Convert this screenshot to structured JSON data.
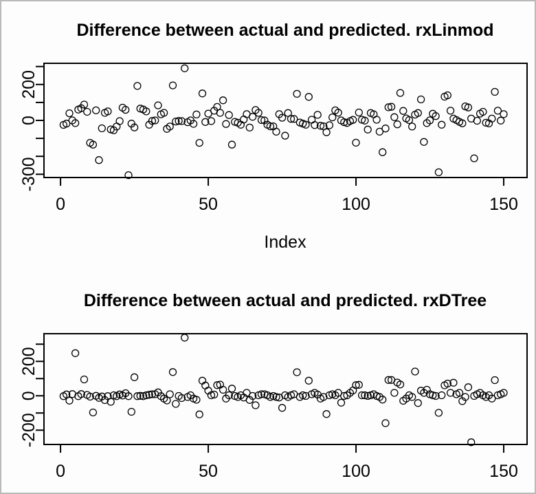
{
  "window": {
    "background": "#fdfdfd",
    "frame_color": "#b9b9b9",
    "ink_color": "#000000"
  },
  "chart_data": [
    {
      "type": "scatter",
      "title": "Difference between actual and predicted. rxLinmod",
      "xlabel": "Index",
      "ylabel": "",
      "marker": "open-circle",
      "marker_color": "#000000",
      "grid": false,
      "legend": "none",
      "xlim": [
        -5.6,
        157.9
      ],
      "ylim": [
        -318,
        318
      ],
      "x_ticks": [
        {
          "value": 0,
          "label": "0"
        },
        {
          "value": 50,
          "label": "50"
        },
        {
          "value": 100,
          "label": "100"
        },
        {
          "value": 150,
          "label": "150"
        }
      ],
      "y_ticks": [
        {
          "value": 300,
          "label": ""
        },
        {
          "value": 200,
          "label": "200"
        },
        {
          "value": 100,
          "label": ""
        },
        {
          "value": 0,
          "label": "0"
        },
        {
          "value": -100,
          "label": ""
        },
        {
          "value": -200,
          "label": ""
        },
        {
          "value": -300,
          "label": "-300"
        }
      ],
      "points": [
        [
          1,
          -25
        ],
        [
          2,
          -18
        ],
        [
          3,
          40
        ],
        [
          4,
          0
        ],
        [
          5,
          -15
        ],
        [
          6,
          60
        ],
        [
          7,
          68
        ],
        [
          8,
          88
        ],
        [
          9,
          48
        ],
        [
          10,
          -125
        ],
        [
          11,
          -135
        ],
        [
          12,
          56
        ],
        [
          13,
          -221
        ],
        [
          14,
          -44
        ],
        [
          15,
          42
        ],
        [
          16,
          50
        ],
        [
          17,
          -50
        ],
        [
          18,
          -55
        ],
        [
          19,
          -34
        ],
        [
          20,
          -4
        ],
        [
          21,
          71
        ],
        [
          22,
          59
        ],
        [
          23,
          -305
        ],
        [
          24,
          -18
        ],
        [
          25,
          -39
        ],
        [
          26,
          192
        ],
        [
          27,
          66
        ],
        [
          28,
          61
        ],
        [
          29,
          50
        ],
        [
          30,
          -24
        ],
        [
          31,
          -3
        ],
        [
          32,
          0
        ],
        [
          33,
          84
        ],
        [
          34,
          34
        ],
        [
          35,
          42
        ],
        [
          36,
          -47
        ],
        [
          37,
          -34
        ],
        [
          38,
          195
        ],
        [
          39,
          -6
        ],
        [
          40,
          -3
        ],
        [
          41,
          -4
        ],
        [
          42,
          290
        ],
        [
          43,
          -10
        ],
        [
          44,
          0
        ],
        [
          45,
          -19
        ],
        [
          46,
          33
        ],
        [
          47,
          -125
        ],
        [
          48,
          150
        ],
        [
          49,
          -9
        ],
        [
          50,
          38
        ],
        [
          51,
          -4
        ],
        [
          52,
          54
        ],
        [
          53,
          75
        ],
        [
          54,
          42
        ],
        [
          55,
          112
        ],
        [
          56,
          -20
        ],
        [
          57,
          30
        ],
        [
          58,
          -135
        ],
        [
          59,
          -8
        ],
        [
          60,
          -13
        ],
        [
          61,
          -24
        ],
        [
          62,
          5
        ],
        [
          63,
          35
        ],
        [
          64,
          -40
        ],
        [
          65,
          20
        ],
        [
          66,
          58
        ],
        [
          67,
          42
        ],
        [
          68,
          2
        ],
        [
          69,
          0
        ],
        [
          70,
          -24
        ],
        [
          71,
          -33
        ],
        [
          72,
          -33
        ],
        [
          73,
          -63
        ],
        [
          74,
          35
        ],
        [
          75,
          15
        ],
        [
          76,
          -85
        ],
        [
          77,
          41
        ],
        [
          78,
          9
        ],
        [
          79,
          8
        ],
        [
          80,
          148
        ],
        [
          81,
          -12
        ],
        [
          82,
          -18
        ],
        [
          83,
          -24
        ],
        [
          84,
          131
        ],
        [
          85,
          4
        ],
        [
          86,
          -26
        ],
        [
          87,
          31
        ],
        [
          88,
          -30
        ],
        [
          89,
          -33
        ],
        [
          90,
          -66
        ],
        [
          91,
          -27
        ],
        [
          92,
          17
        ],
        [
          93,
          56
        ],
        [
          94,
          43
        ],
        [
          95,
          0
        ],
        [
          96,
          -10
        ],
        [
          97,
          -14
        ],
        [
          98,
          -4
        ],
        [
          99,
          3
        ],
        [
          100,
          -124
        ],
        [
          101,
          44
        ],
        [
          102,
          4
        ],
        [
          103,
          -1
        ],
        [
          104,
          -51
        ],
        [
          105,
          41
        ],
        [
          106,
          34
        ],
        [
          107,
          4
        ],
        [
          108,
          -63
        ],
        [
          109,
          -177
        ],
        [
          110,
          -45
        ],
        [
          111,
          73
        ],
        [
          112,
          76
        ],
        [
          113,
          18
        ],
        [
          114,
          -22
        ],
        [
          115,
          153
        ],
        [
          116,
          53
        ],
        [
          117,
          11
        ],
        [
          118,
          2
        ],
        [
          119,
          -34
        ],
        [
          120,
          32
        ],
        [
          121,
          41
        ],
        [
          122,
          117
        ],
        [
          123,
          -120
        ],
        [
          124,
          -15
        ],
        [
          125,
          0
        ],
        [
          126,
          37
        ],
        [
          127,
          24
        ],
        [
          128,
          -289
        ],
        [
          129,
          -24
        ],
        [
          130,
          132
        ],
        [
          131,
          140
        ],
        [
          132,
          54
        ],
        [
          133,
          10
        ],
        [
          134,
          2
        ],
        [
          135,
          -8
        ],
        [
          136,
          -16
        ],
        [
          137,
          78
        ],
        [
          138,
          72
        ],
        [
          139,
          10
        ],
        [
          140,
          -211
        ],
        [
          141,
          -2
        ],
        [
          142,
          38
        ],
        [
          143,
          48
        ],
        [
          144,
          -13
        ],
        [
          145,
          -17
        ],
        [
          146,
          10
        ],
        [
          147,
          159
        ],
        [
          148,
          54
        ],
        [
          149,
          -1
        ],
        [
          150,
          35
        ]
      ]
    },
    {
      "type": "scatter",
      "title": "Difference between actual and predicted. rxDTree",
      "xlabel": "",
      "ylabel": "",
      "marker": "open-circle",
      "marker_color": "#000000",
      "grid": false,
      "legend": "none",
      "xlim": [
        -5.6,
        157.9
      ],
      "ylim": [
        -283,
        361
      ],
      "x_ticks": [
        {
          "value": 0,
          "label": "0"
        },
        {
          "value": 50,
          "label": "50"
        },
        {
          "value": 100,
          "label": "100"
        },
        {
          "value": 150,
          "label": "150"
        }
      ],
      "y_ticks": [
        {
          "value": 300,
          "label": ""
        },
        {
          "value": 200,
          "label": "200"
        },
        {
          "value": 100,
          "label": ""
        },
        {
          "value": 0,
          "label": "0"
        },
        {
          "value": -100,
          "label": ""
        },
        {
          "value": -200,
          "label": "-200"
        }
      ],
      "points": [
        [
          1,
          -2
        ],
        [
          2,
          8
        ],
        [
          3,
          -28
        ],
        [
          4,
          10
        ],
        [
          5,
          248
        ],
        [
          6,
          -2
        ],
        [
          7,
          10
        ],
        [
          8,
          95
        ],
        [
          9,
          5
        ],
        [
          10,
          -5
        ],
        [
          11,
          -97
        ],
        [
          12,
          0
        ],
        [
          13,
          -12
        ],
        [
          14,
          -4
        ],
        [
          15,
          -25
        ],
        [
          16,
          -2
        ],
        [
          17,
          -35
        ],
        [
          18,
          3
        ],
        [
          19,
          -2
        ],
        [
          20,
          8
        ],
        [
          21,
          2
        ],
        [
          22,
          15
        ],
        [
          23,
          -2
        ],
        [
          24,
          -93
        ],
        [
          25,
          108
        ],
        [
          26,
          -2
        ],
        [
          27,
          0
        ],
        [
          28,
          -2
        ],
        [
          29,
          3
        ],
        [
          30,
          6
        ],
        [
          31,
          9
        ],
        [
          32,
          9
        ],
        [
          33,
          20
        ],
        [
          34,
          -2
        ],
        [
          35,
          -16
        ],
        [
          36,
          -27
        ],
        [
          37,
          9
        ],
        [
          38,
          138
        ],
        [
          39,
          -47
        ],
        [
          40,
          -1
        ],
        [
          41,
          -13
        ],
        [
          42,
          338
        ],
        [
          43,
          -7
        ],
        [
          44,
          3
        ],
        [
          45,
          -16
        ],
        [
          46,
          -23
        ],
        [
          47,
          -108
        ],
        [
          48,
          88
        ],
        [
          49,
          60
        ],
        [
          50,
          30
        ],
        [
          51,
          3
        ],
        [
          52,
          7
        ],
        [
          53,
          62
        ],
        [
          54,
          65
        ],
        [
          55,
          35
        ],
        [
          56,
          -16
        ],
        [
          57,
          3
        ],
        [
          58,
          42
        ],
        [
          59,
          -1
        ],
        [
          60,
          -7
        ],
        [
          61,
          3
        ],
        [
          62,
          -10
        ],
        [
          63,
          17
        ],
        [
          64,
          -24
        ],
        [
          65,
          -1
        ],
        [
          66,
          -55
        ],
        [
          67,
          3
        ],
        [
          68,
          9
        ],
        [
          69,
          9
        ],
        [
          70,
          3
        ],
        [
          71,
          -7
        ],
        [
          72,
          -1
        ],
        [
          73,
          -7
        ],
        [
          74,
          -10
        ],
        [
          75,
          -70
        ],
        [
          76,
          3
        ],
        [
          77,
          -7
        ],
        [
          78,
          3
        ],
        [
          79,
          9
        ],
        [
          80,
          137
        ],
        [
          81,
          -7
        ],
        [
          82,
          3
        ],
        [
          83,
          -1
        ],
        [
          84,
          88
        ],
        [
          85,
          9
        ],
        [
          86,
          17
        ],
        [
          87,
          7
        ],
        [
          88,
          -16
        ],
        [
          89,
          -7
        ],
        [
          90,
          -106
        ],
        [
          91,
          3
        ],
        [
          92,
          9
        ],
        [
          93,
          3
        ],
        [
          94,
          17
        ],
        [
          95,
          -40
        ],
        [
          96,
          -1
        ],
        [
          97,
          3
        ],
        [
          98,
          17
        ],
        [
          99,
          31
        ],
        [
          100,
          62
        ],
        [
          101,
          64
        ],
        [
          102,
          3
        ],
        [
          103,
          3
        ],
        [
          104,
          -1
        ],
        [
          105,
          3
        ],
        [
          106,
          9
        ],
        [
          107,
          -1
        ],
        [
          108,
          -7
        ],
        [
          109,
          -22
        ],
        [
          110,
          -159
        ],
        [
          111,
          92
        ],
        [
          112,
          92
        ],
        [
          113,
          17
        ],
        [
          114,
          77
        ],
        [
          115,
          66
        ],
        [
          116,
          -29
        ],
        [
          117,
          -16
        ],
        [
          118,
          3
        ],
        [
          119,
          -7
        ],
        [
          120,
          141
        ],
        [
          121,
          -42
        ],
        [
          122,
          30
        ],
        [
          123,
          17
        ],
        [
          124,
          35
        ],
        [
          125,
          9
        ],
        [
          126,
          3
        ],
        [
          127,
          -1
        ],
        [
          128,
          -99
        ],
        [
          129,
          3
        ],
        [
          130,
          61
        ],
        [
          131,
          71
        ],
        [
          132,
          17
        ],
        [
          133,
          76
        ],
        [
          134,
          9
        ],
        [
          135,
          17
        ],
        [
          136,
          -31
        ],
        [
          137,
          -7
        ],
        [
          138,
          50
        ],
        [
          139,
          -270
        ],
        [
          140,
          -1
        ],
        [
          141,
          9
        ],
        [
          142,
          17
        ],
        [
          143,
          3
        ],
        [
          144,
          -7
        ],
        [
          145,
          3
        ],
        [
          146,
          -16
        ],
        [
          147,
          91
        ],
        [
          148,
          3
        ],
        [
          149,
          9
        ],
        [
          150,
          17
        ]
      ]
    }
  ]
}
